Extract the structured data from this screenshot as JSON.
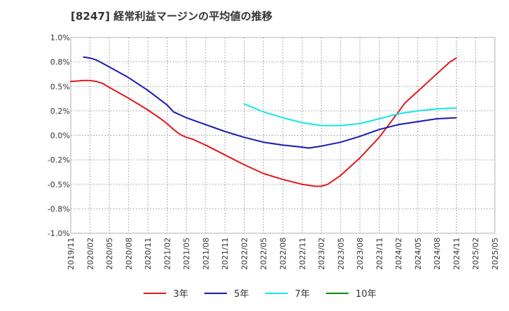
{
  "chart_data": {
    "type": "line",
    "title": "[8247]  経常利益マージンの平均値の推移",
    "xlabel": "",
    "ylabel": "",
    "ylim": [
      -1.0,
      1.0
    ],
    "grid": true,
    "legend_position": "bottom",
    "y_ticks": [
      "1.0%",
      "0.8%",
      "0.5%",
      "0.2%",
      "0.0%",
      "-0.2%",
      "-0.5%",
      "-0.8%",
      "-1.0%"
    ],
    "y_tick_values": [
      1.0,
      0.75,
      0.5,
      0.25,
      0.0,
      -0.25,
      -0.5,
      -0.75,
      -1.0
    ],
    "x_ticks": [
      "2019/11",
      "2020/02",
      "2020/05",
      "2020/08",
      "2020/11",
      "2021/02",
      "2021/05",
      "2021/08",
      "2021/11",
      "2022/02",
      "2022/05",
      "2022/08",
      "2022/11",
      "2023/02",
      "2023/05",
      "2023/08",
      "2023/11",
      "2024/02",
      "2024/05",
      "2024/08",
      "2024/11",
      "2025/02",
      "2025/05"
    ],
    "series": [
      {
        "name": "3年",
        "color": "#e31a1c",
        "points": [
          [
            "2019/11",
            0.55
          ],
          [
            "2020/01",
            0.56
          ],
          [
            "2020/02",
            0.56
          ],
          [
            "2020/03",
            0.55
          ],
          [
            "2020/04",
            0.53
          ],
          [
            "2020/05",
            0.49
          ],
          [
            "2020/08",
            0.38
          ],
          [
            "2020/11",
            0.26
          ],
          [
            "2021/01",
            0.17
          ],
          [
            "2021/02",
            0.12
          ],
          [
            "2021/03",
            0.06
          ],
          [
            "2021/04",
            0.01
          ],
          [
            "2021/05",
            -0.02
          ],
          [
            "2021/06",
            -0.04
          ],
          [
            "2021/08",
            -0.1
          ],
          [
            "2021/11",
            -0.2
          ],
          [
            "2022/02",
            -0.3
          ],
          [
            "2022/05",
            -0.39
          ],
          [
            "2022/08",
            -0.45
          ],
          [
            "2022/11",
            -0.5
          ],
          [
            "2023/01",
            -0.52
          ],
          [
            "2023/02",
            -0.52
          ],
          [
            "2023/03",
            -0.5
          ],
          [
            "2023/05",
            -0.41
          ],
          [
            "2023/08",
            -0.23
          ],
          [
            "2023/11",
            -0.02
          ],
          [
            "2024/02",
            0.24
          ],
          [
            "2024/03",
            0.33
          ],
          [
            "2024/05",
            0.45
          ],
          [
            "2024/08",
            0.63
          ],
          [
            "2024/10",
            0.75
          ],
          [
            "2024/11",
            0.79
          ]
        ]
      },
      {
        "name": "5年",
        "color": "#1a1ab4",
        "points": [
          [
            "2020/01",
            0.8
          ],
          [
            "2020/02",
            0.79
          ],
          [
            "2020/03",
            0.77
          ],
          [
            "2020/05",
            0.7
          ],
          [
            "2020/08",
            0.59
          ],
          [
            "2020/11",
            0.46
          ],
          [
            "2021/02",
            0.31
          ],
          [
            "2021/03",
            0.24
          ],
          [
            "2021/05",
            0.18
          ],
          [
            "2021/08",
            0.11
          ],
          [
            "2021/11",
            0.04
          ],
          [
            "2022/02",
            -0.02
          ],
          [
            "2022/05",
            -0.07
          ],
          [
            "2022/08",
            -0.1
          ],
          [
            "2022/11",
            -0.12
          ],
          [
            "2022/12",
            -0.13
          ],
          [
            "2023/02",
            -0.11
          ],
          [
            "2023/05",
            -0.07
          ],
          [
            "2023/08",
            -0.01
          ],
          [
            "2023/11",
            0.06
          ],
          [
            "2024/02",
            0.11
          ],
          [
            "2024/05",
            0.14
          ],
          [
            "2024/08",
            0.17
          ],
          [
            "2024/11",
            0.18
          ]
        ]
      },
      {
        "name": "7年",
        "color": "#1ae6e6",
        "points": [
          [
            "2022/02",
            0.32
          ],
          [
            "2022/05",
            0.24
          ],
          [
            "2022/08",
            0.18
          ],
          [
            "2022/11",
            0.13
          ],
          [
            "2023/02",
            0.1
          ],
          [
            "2023/05",
            0.1
          ],
          [
            "2023/08",
            0.12
          ],
          [
            "2023/11",
            0.17
          ],
          [
            "2024/02",
            0.22
          ],
          [
            "2024/05",
            0.25
          ],
          [
            "2024/08",
            0.27
          ],
          [
            "2024/11",
            0.28
          ]
        ]
      },
      {
        "name": "10年",
        "color": "#0a8c0a",
        "points": []
      }
    ]
  }
}
